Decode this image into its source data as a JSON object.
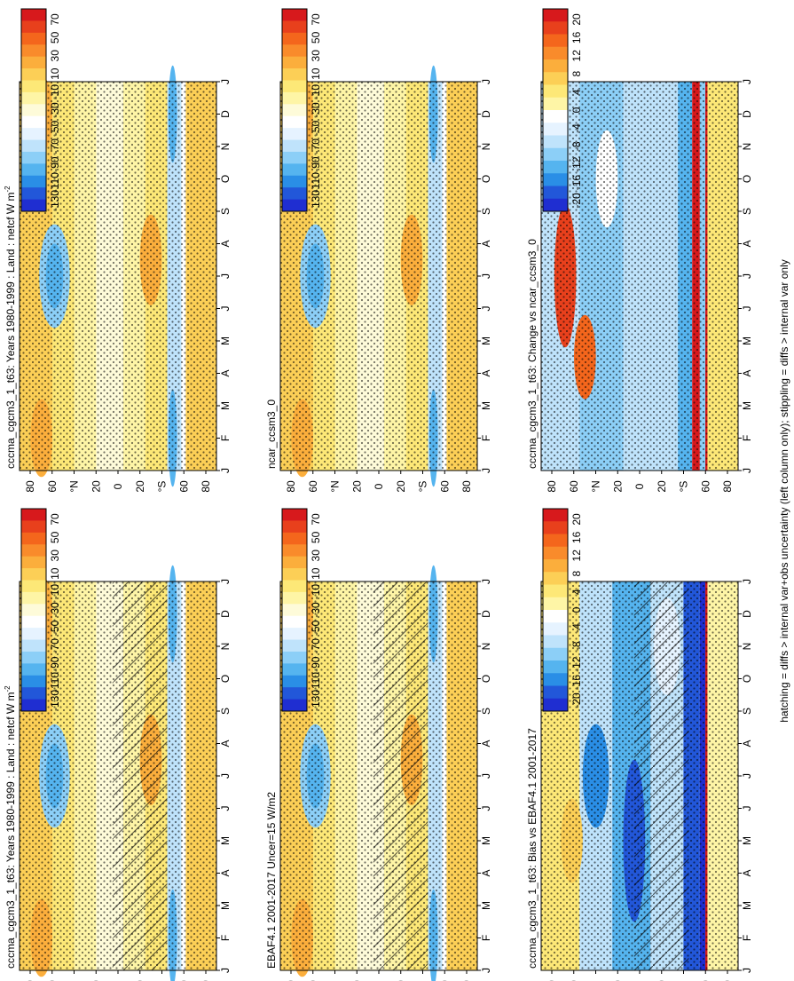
{
  "figure": {
    "footnote": "hatching = diffs > internal var+obs uncertainty (left column only); stippling = diffs > internal var only",
    "colors": {
      "land_mask": "#ffffff",
      "stipple": "#000000",
      "outline": "#000000"
    }
  },
  "chart_data": [
    {
      "id": "model-left",
      "type": "heatmap",
      "title": "cccma_cgcm3_1_t63: Years 1980-1999 : Land : netcf W m-2",
      "title_main": "cccma_cgcm3_1_t63: Years 1980-1999 : Land : netcf W m",
      "title_sup": "-2",
      "x_ticks": [
        "J",
        "F",
        "M",
        "A",
        "M",
        "J",
        "J",
        "A",
        "S",
        "O",
        "N",
        "D",
        "J"
      ],
      "y_ticks": [
        "80",
        "60",
        "°N",
        "20",
        "0",
        "20",
        "°S",
        "60",
        "80"
      ],
      "y_range": [
        90,
        -90
      ],
      "colorbar": {
        "labels": [
          "70",
          "50",
          "30",
          "10",
          "-10",
          "-30",
          "-50",
          "-70",
          "-90",
          "-110",
          "-130"
        ],
        "colors": [
          "#d7191c",
          "#e8401c",
          "#f4661c",
          "#f98b2b",
          "#fbae3c",
          "#fccf56",
          "#fde877",
          "#fef5a6",
          "#fefbd9",
          "#ffffff",
          "#e6f3ff",
          "#bfe3fb",
          "#8ccff7",
          "#55b4ef",
          "#2a8ee6",
          "#2257d9",
          "#1f2ed1"
        ]
      },
      "overlays": [
        "stippling",
        "hatching"
      ]
    },
    {
      "id": "model-right",
      "type": "heatmap",
      "title": "cccma_cgcm3_1_t63: Years 1980-1999 : Land : netcf W m-2",
      "title_main": "cccma_cgcm3_1_t63: Years 1980-1999 : Land : netcf W m",
      "title_sup": "-2",
      "x_ticks": [
        "J",
        "F",
        "M",
        "A",
        "M",
        "J",
        "J",
        "A",
        "S",
        "O",
        "N",
        "D",
        "J"
      ],
      "y_ticks": [
        "80",
        "60",
        "°N",
        "20",
        "0",
        "20",
        "°S",
        "60",
        "80"
      ],
      "y_range": [
        90,
        -90
      ],
      "colorbar": {
        "labels": [
          "70",
          "50",
          "30",
          "10",
          "-10",
          "-30",
          "-50",
          "-70",
          "-90",
          "-110",
          "-130"
        ],
        "colors": [
          "#d7191c",
          "#e8401c",
          "#f4661c",
          "#f98b2b",
          "#fbae3c",
          "#fccf56",
          "#fde877",
          "#fef5a6",
          "#fefbd9",
          "#ffffff",
          "#e6f3ff",
          "#bfe3fb",
          "#8ccff7",
          "#55b4ef",
          "#2a8ee6",
          "#2257d9",
          "#1f2ed1"
        ]
      },
      "overlays": [
        "stippling"
      ]
    },
    {
      "id": "obs",
      "type": "heatmap",
      "title": "EBAF4.1 2001-2017 Uncer=15 W/m2",
      "x_ticks": [
        "J",
        "F",
        "M",
        "A",
        "M",
        "J",
        "J",
        "A",
        "S",
        "O",
        "N",
        "D",
        "J"
      ],
      "y_ticks": [
        "80",
        "60",
        "°N",
        "20",
        "0",
        "20",
        "°S",
        "60",
        "80"
      ],
      "y_range": [
        90,
        -90
      ],
      "colorbar": {
        "labels": [
          "70",
          "50",
          "30",
          "10",
          "-10",
          "-30",
          "-50",
          "-70",
          "-90",
          "-110",
          "-130"
        ],
        "colors": [
          "#d7191c",
          "#e8401c",
          "#f4661c",
          "#f98b2b",
          "#fbae3c",
          "#fccf56",
          "#fde877",
          "#fef5a6",
          "#fefbd9",
          "#ffffff",
          "#e6f3ff",
          "#bfe3fb",
          "#8ccff7",
          "#55b4ef",
          "#2a8ee6",
          "#2257d9",
          "#1f2ed1"
        ]
      },
      "overlays": [
        "stippling",
        "hatching"
      ]
    },
    {
      "id": "ref-model",
      "type": "heatmap",
      "title": "ncar_ccsm3_0",
      "x_ticks": [
        "J",
        "F",
        "M",
        "A",
        "M",
        "J",
        "J",
        "A",
        "S",
        "O",
        "N",
        "D",
        "J"
      ],
      "y_ticks": [
        "80",
        "60",
        "°N",
        "20",
        "0",
        "20",
        "°S",
        "60",
        "80"
      ],
      "y_range": [
        90,
        -90
      ],
      "colorbar": {
        "labels": [
          "70",
          "50",
          "30",
          "10",
          "-10",
          "-30",
          "-50",
          "-70",
          "-90",
          "-110",
          "-130"
        ],
        "colors": [
          "#d7191c",
          "#e8401c",
          "#f4661c",
          "#f98b2b",
          "#fbae3c",
          "#fccf56",
          "#fde877",
          "#fef5a6",
          "#fefbd9",
          "#ffffff",
          "#e6f3ff",
          "#bfe3fb",
          "#8ccff7",
          "#55b4ef",
          "#2a8ee6",
          "#2257d9",
          "#1f2ed1"
        ]
      },
      "overlays": [
        "stippling"
      ]
    },
    {
      "id": "bias",
      "type": "heatmap",
      "title": "cccma_cgcm3_1_t63: Bias vs EBAF4.1 2001-2017",
      "x_ticks": [
        "J",
        "F",
        "M",
        "A",
        "M",
        "J",
        "J",
        "A",
        "S",
        "O",
        "N",
        "D",
        "J"
      ],
      "y_ticks": [
        "80",
        "60",
        "°N",
        "20",
        "0",
        "20",
        "°S",
        "60",
        "80"
      ],
      "y_range": [
        90,
        -90
      ],
      "colorbar": {
        "labels": [
          "20",
          "16",
          "12",
          "8",
          "4",
          "0",
          "-4",
          "-8",
          "-12",
          "-16",
          "-20"
        ],
        "colors": [
          "#d7191c",
          "#e8401c",
          "#f4661c",
          "#f98b2b",
          "#fbae3c",
          "#fccf56",
          "#fde877",
          "#fef5a6",
          "#ffffff",
          "#e6f3ff",
          "#bfe3fb",
          "#8ccff7",
          "#55b4ef",
          "#2a8ee6",
          "#2257d9",
          "#1f2ed1"
        ]
      },
      "overlays": [
        "stippling",
        "hatching"
      ]
    },
    {
      "id": "change",
      "type": "heatmap",
      "title": "cccma_cgcm3_1_t63: Change vs ncar_ccsm3_0",
      "x_ticks": [
        "J",
        "F",
        "M",
        "A",
        "M",
        "J",
        "J",
        "A",
        "S",
        "O",
        "N",
        "D",
        "J"
      ],
      "y_ticks": [
        "80",
        "60",
        "°N",
        "20",
        "0",
        "20",
        "°S",
        "60",
        "80"
      ],
      "y_range": [
        90,
        -90
      ],
      "colorbar": {
        "labels": [
          "20",
          "16",
          "12",
          "8",
          "4",
          "0",
          "-4",
          "-8",
          "-12",
          "-16",
          "-20"
        ],
        "colors": [
          "#d7191c",
          "#e8401c",
          "#f4661c",
          "#f98b2b",
          "#fbae3c",
          "#fccf56",
          "#fde877",
          "#fef5a6",
          "#ffffff",
          "#e6f3ff",
          "#bfe3fb",
          "#8ccff7",
          "#55b4ef",
          "#2a8ee6",
          "#2257d9",
          "#1f2ed1"
        ]
      },
      "overlays": [
        "stippling"
      ]
    }
  ]
}
